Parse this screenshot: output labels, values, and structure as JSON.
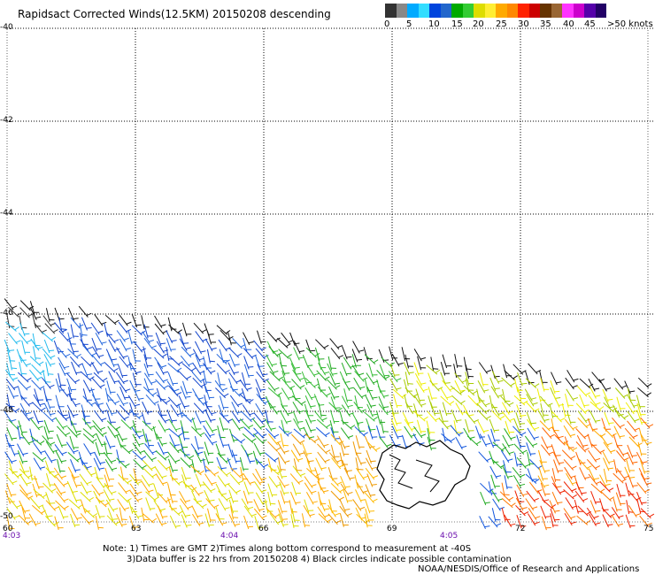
{
  "title": "Rapidsact Corrected Winds(12.5KM) 20150208 descending",
  "colorbar": {
    "colors": [
      "#333333",
      "#888888",
      "#00aaff",
      "#33ddff",
      "#0044dd",
      "#2266cc",
      "#00aa00",
      "#33cc33",
      "#dddd00",
      "#ffee33",
      "#ffaa00",
      "#ff8800",
      "#ff2200",
      "#cc0000",
      "#663300",
      "#996633",
      "#ff33ff",
      "#cc00cc",
      "#5500aa",
      "#220066"
    ],
    "labels": [
      "0",
      "5",
      "10",
      "15",
      "20",
      "25",
      "30",
      "35",
      "40",
      "45",
      ">50 knots"
    ]
  },
  "axes": {
    "lat_labels": [
      "-40",
      "-42",
      "-44",
      "-46",
      "-48",
      "-50"
    ],
    "lon_labels": [
      "60",
      "63",
      "66",
      "69",
      "72",
      "75"
    ],
    "time_labels": [
      "4:03",
      "4:04",
      "4:05"
    ]
  },
  "notes": [
    "Note: 1) Times are GMT 2)Times along bottom correspond to measurement at -40S",
    "3)Data buffer is 22 hrs from 20150208 4) Black circles indicate possible contamination",
    "NOAA/NESDIS/Office of Research and Applications"
  ]
}
